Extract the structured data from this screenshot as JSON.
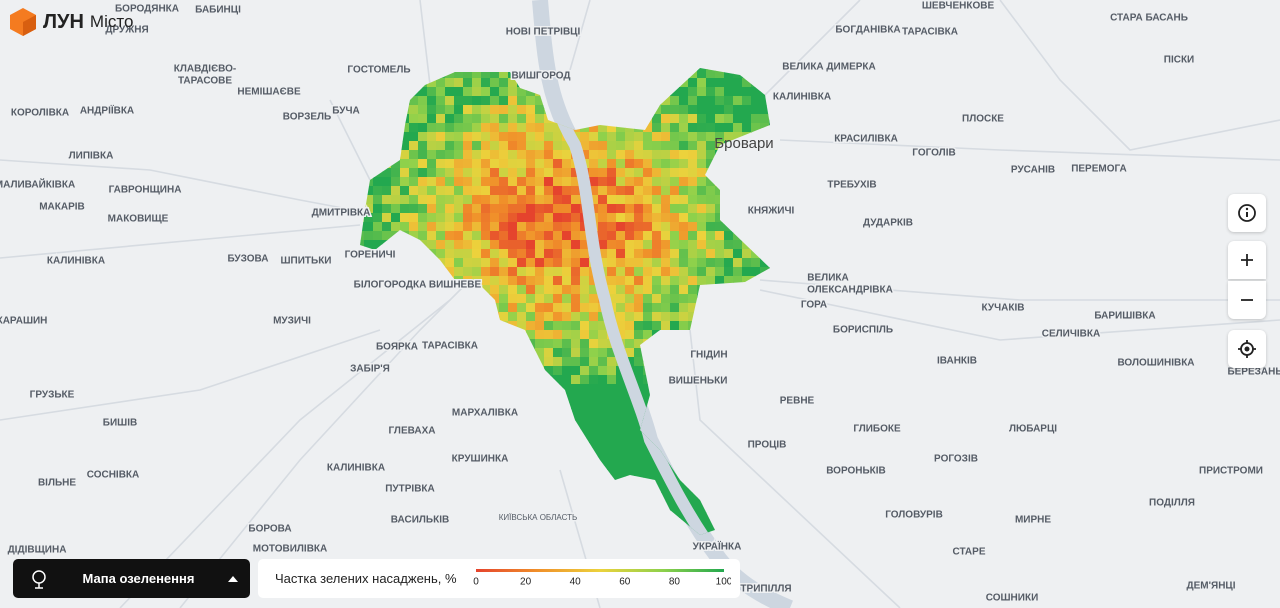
{
  "brand": {
    "name": "ЛУН",
    "product": "Місто"
  },
  "places": [
    "БОРОДЯНКА",
    "БАБИНЦІ",
    "ДРУЖНЯ",
    "НОВІ ПЕТРІВЦІ",
    "ШЕВЧЕНКОВЕ",
    "БОГДАНІВКА",
    "ТАРАСІВКА",
    "СТАРА БАСАНЬ",
    "ПІСКИ",
    "КЛАВДІЄВО-",
    "ТАРАСОВЕ",
    "ГОСТОМЕЛЬ",
    "ВИШГОРОД",
    "ВЕЛИКА ДИМЕРКА",
    "КАЛИНІВКА",
    "НЕМІШАЄВЕ",
    "КОРОЛІВКА",
    "АНДРІЇВКА",
    "ВОРЗЕЛЬ",
    "БУЧА",
    "ПЛОСКЕ",
    "КРАСИЛІВКА",
    "ЛИПІВКА",
    "ГОГОЛІВ",
    "РУСАНІВ",
    "ПЕРЕМОГА",
    "МАЛИВАЙКІВКА",
    "ГАВРОНЩИНА",
    "ТРЕБУХІВ",
    "МАКАРІВ",
    "КНЯЖИЧІ",
    "ДМИТРІВКА",
    "МАКОВИЩЕ",
    "ДУДАРКІВ",
    "КАЛИНІВКА",
    "БУЗОВА",
    "ШПИТЬКИ",
    "ГОРЕНИЧІ",
    "ВЕЛИКА",
    "ОЛЕКСАНДРІВКА",
    "БІЛОГОРОДКА",
    "ВИШНЕВЕ",
    "ГОРА",
    "КУЧАКІВ",
    "БАРИШІВКА",
    "КАРАШИН",
    "МУЗИЧІ",
    "БОРИСПІЛЬ",
    "СЕЛИЧІВКА",
    "БОЯРКА",
    "ТАРАСІВКА",
    "ГНІДИН",
    "ІВАНКІВ",
    "ВОЛОШИНІВКА",
    "ЗАБІР'Я",
    "БЕРЕЗАНЬ",
    "ВИШЕНЬКИ",
    "ГРУЗЬКЕ",
    "РЕВНЕ",
    "МАРХАЛІВКА",
    "БИШІВ",
    "ГЛИБОКЕ",
    "ЛЮБАРЦІ",
    "ГЛЕВАХА",
    "ПРОЦІВ",
    "КРУШИНКА",
    "РОГОЗІВ",
    "КАЛИНІВКА",
    "ВОРОНЬКІВ",
    "ПРИСТРОМИ",
    "СОСНІВКА",
    "ВІЛЬНЕ",
    "ПУТРІВКА",
    "ПОДІЛЛЯ",
    "ВАСИЛЬКІВ",
    "КИЇВСЬКА ОБЛАСТЬ",
    "ГОЛОВУРІВ",
    "МИРНЕ",
    "БОРОВА",
    "УКРАЇНКА",
    "МОТОВИЛІВКА",
    "ДІДІВЩИНА",
    "СТАРЕ",
    "ДЕМ'ЯНЦІ",
    "ТРИПІЛЛЯ",
    "СОШНИКИ"
  ],
  "city": "Бровари",
  "layer_button": "Мапа озеленення",
  "legend": {
    "title": "Частка зелених насаджень, %",
    "range": [
      0,
      100
    ],
    "ticks": [
      0,
      20,
      40,
      60,
      80,
      100
    ],
    "colors": [
      "#e5432d",
      "#f0902a",
      "#ecd23c",
      "#8fd14b",
      "#23a84f"
    ]
  }
}
